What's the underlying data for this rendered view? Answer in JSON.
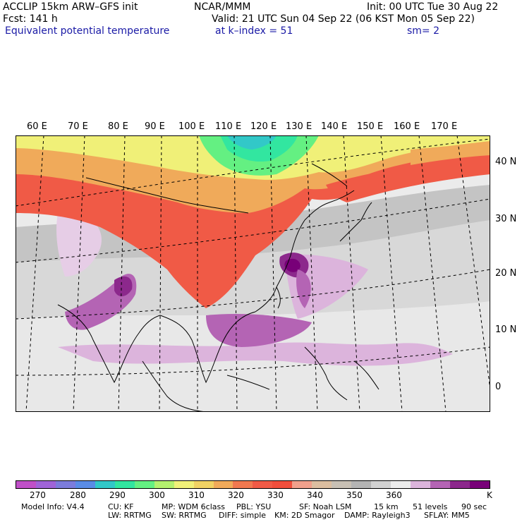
{
  "header": {
    "line1_left": "ACCLIP 15km ARW–GFS init",
    "line1_center": "NCAR/MMM",
    "line1_right": "Init: 00 UTC Tue 30 Aug 22",
    "line2_left": "Fcst:  141 h",
    "line2_right": "Valid: 21 UTC Sun 04 Sep 22 (06 KST Mon 05 Sep 22)",
    "line3_left": "Equivalent potential temperature",
    "line3_center": "at k–index =  51",
    "line3_right": "sm= 2"
  },
  "map": {
    "lon_labels": [
      "60 E",
      "70 E",
      "80 E",
      "90 E",
      "100 E",
      "110 E",
      "120 E",
      "130 E",
      "140 E",
      "150 E",
      "160 E",
      "170 E"
    ],
    "lat_labels": [
      "40 N",
      "30 N",
      "20 N",
      "10 N",
      "0"
    ]
  },
  "colorbar": {
    "colors": [
      "#c050c8",
      "#a064d8",
      "#7c7cdc",
      "#5a8ce6",
      "#32c8c8",
      "#32e6a0",
      "#64f082",
      "#b4f06e",
      "#f0f078",
      "#f0d264",
      "#f0aa5a",
      "#f07850",
      "#f05a46",
      "#f04e3c",
      "#f0a08c",
      "#dcbea0",
      "#c8c0b4",
      "#b4b4b4",
      "#d2d2d2",
      "#ececec",
      "#dcb4dc",
      "#b464b4",
      "#8c288c",
      "#780078"
    ],
    "ticks": [
      "270",
      "280",
      "290",
      "300",
      "310",
      "320",
      "330",
      "340",
      "350",
      "360"
    ],
    "unit": "K"
  },
  "footer": {
    "row1": [
      "Model Info: V4.4",
      "CU: KF",
      "MP: WDM 6class",
      "PBL: YSU",
      "SF: Noah LSM",
      "15 km",
      "51 levels",
      "90 sec"
    ],
    "row2": [
      "LW: RRTMG",
      "SW: RRTMG",
      "DIFF: simple",
      "KM: 2D Smagor",
      "DAMP: Rayleigh3",
      "SFLAY: MM5"
    ]
  }
}
